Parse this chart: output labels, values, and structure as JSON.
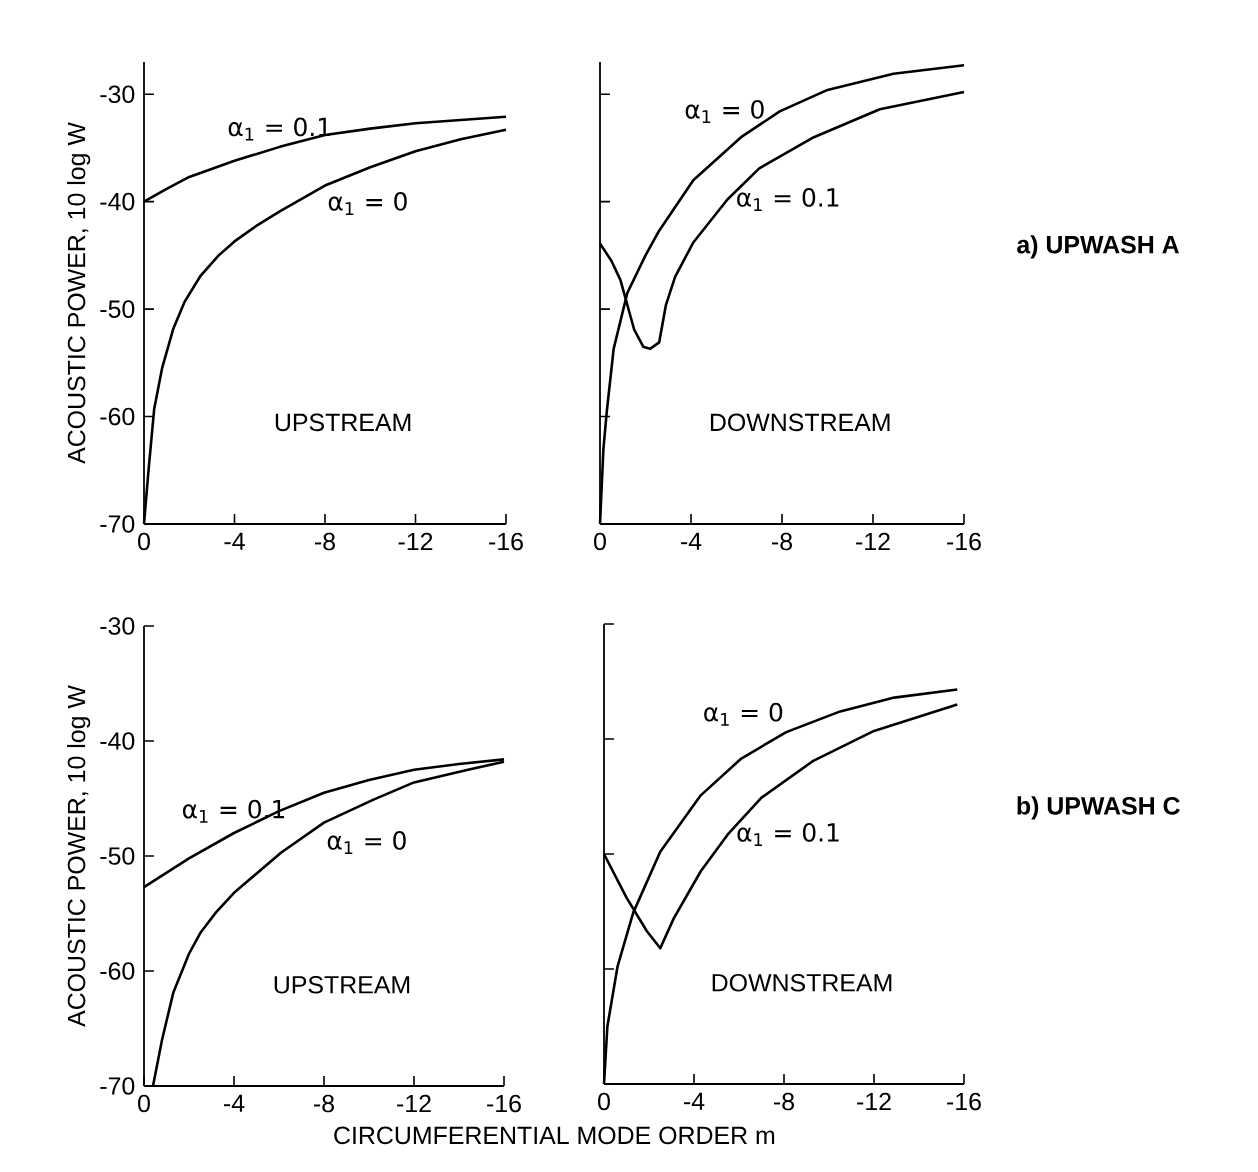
{
  "chart_data": [
    {
      "type": "line",
      "ylabel": "ACOUSTIC POWER, 10 log W",
      "xlim": [
        0,
        -16
      ],
      "ylim": [
        -70,
        -27
      ],
      "xticks": [
        0,
        -4,
        -8,
        -12,
        -16
      ],
      "yticks": [
        -70,
        -60,
        -50,
        -40,
        -30
      ],
      "annotations": [
        "UPSTREAM"
      ],
      "series": [
        {
          "name": "α$_{1}$ = 0.1",
          "color": "#000000",
          "x": [
            0,
            -1,
            -2,
            -4,
            -6,
            -8,
            -10,
            -12,
            -14,
            -16
          ],
          "values": [
            -40,
            -38.8,
            -37.7,
            -36.2,
            -34.9,
            -33.8,
            -33.2,
            -32.7,
            -32.4,
            -32.1
          ]
        },
        {
          "name": "α$_{1}$ = 0",
          "color": "#000000",
          "x": [
            0,
            -0.2,
            -0.45,
            -0.8,
            -1.3,
            -1.8,
            -2.5,
            -3.3,
            -4,
            -5,
            -6,
            -8,
            -10,
            -12,
            -14,
            -16
          ],
          "values": [
            -70,
            -65,
            -59.3,
            -55.5,
            -51.8,
            -49.3,
            -46.9,
            -45,
            -43.7,
            -42.2,
            -40.9,
            -38.5,
            -36.8,
            -35.3,
            -34.2,
            -33.3
          ]
        }
      ]
    },
    {
      "type": "line",
      "xlim": [
        0,
        -16
      ],
      "ylim": [
        -70,
        -27
      ],
      "xticks": [
        0,
        -4,
        -8,
        -12,
        -16
      ],
      "yticks": [
        -70,
        -60,
        -50,
        -40,
        -30
      ],
      "tick_labels": "x",
      "annotations": [
        "DOWNSTREAM",
        "a)  UPWASH A"
      ],
      "series": [
        {
          "name": "α$_{1}$ = 0",
          "color": "#000000",
          "x": [
            0,
            -0.15,
            -0.3,
            -0.6,
            -1.2,
            -2,
            -2.6,
            -4.1,
            -6.2,
            -7.9,
            -10,
            -12.9,
            -16
          ],
          "values": [
            -70,
            -63,
            -59.5,
            -53.7,
            -48.5,
            -45,
            -42.7,
            -38,
            -34,
            -31.6,
            -29.6,
            -28.1,
            -27.3
          ]
        },
        {
          "name": "α$_{1}$ = 0.1",
          "color": "#000000",
          "x": [
            0,
            -0.5,
            -0.9,
            -1.5,
            -1.9,
            -2.2,
            -2.6,
            -2.9,
            -3.3,
            -4.1,
            -5.6,
            -7,
            -9.4,
            -12.3,
            -16
          ],
          "values": [
            -43.9,
            -45.5,
            -47.3,
            -51.9,
            -53.5,
            -53.7,
            -53.1,
            -49.6,
            -47.0,
            -43.8,
            -39.8,
            -36.9,
            -34,
            -31.4,
            -29.8
          ]
        }
      ]
    },
    {
      "type": "line",
      "xlabel": "CIRCUMFERENTIAL MODE ORDER m",
      "ylabel": "ACOUSTIC POWER, 10 log W",
      "xlim": [
        0,
        -16
      ],
      "ylim": [
        -70,
        -30
      ],
      "xticks": [
        0,
        -4,
        -8,
        -12,
        -16
      ],
      "yticks": [
        -70,
        -60,
        -50,
        -40,
        -30
      ],
      "annotations": [
        "UPSTREAM"
      ],
      "series": [
        {
          "name": "α$_{1}$ = 0.1",
          "color": "#000000",
          "x": [
            0,
            -2,
            -4,
            -6,
            -8,
            -10,
            -12,
            -14,
            -16
          ],
          "values": [
            -52.7,
            -50.2,
            -48,
            -46.1,
            -44.5,
            -43.4,
            -42.5,
            -42,
            -41.6
          ]
        },
        {
          "name": "α$_{1}$ = 0",
          "color": "#000000",
          "x": [
            -0.4,
            -0.8,
            -1.3,
            -2,
            -2.5,
            -3.2,
            -4,
            -6.1,
            -8,
            -10.2,
            -12,
            -14.4,
            -16
          ],
          "values": [
            -70,
            -66,
            -61.9,
            -58.5,
            -56.7,
            -54.9,
            -53.2,
            -49.7,
            -47.1,
            -45.1,
            -43.6,
            -42.5,
            -41.8
          ]
        }
      ]
    },
    {
      "type": "line",
      "xlim": [
        0,
        -16
      ],
      "ylim": [
        -70,
        -30
      ],
      "xticks": [
        0,
        -4,
        -8,
        -12,
        -16
      ],
      "yticks": [
        -70,
        -60,
        -50,
        -40,
        -30
      ],
      "tick_labels": "x",
      "annotations": [
        "DOWNSTREAM",
        "b)  UPWASH C"
      ],
      "series": [
        {
          "name": "α$_{1}$ = 0",
          "color": "#000000",
          "x": [
            0,
            -0.15,
            -0.6,
            -1.3,
            -2.5,
            -4.3,
            -6.1,
            -8.1,
            -10.5,
            -12.9,
            -15.7
          ],
          "values": [
            -70,
            -65,
            -59.8,
            -55.1,
            -49.8,
            -44.9,
            -41.7,
            -39.4,
            -37.6,
            -36.4,
            -35.7
          ]
        },
        {
          "name": "α$_{1}$ = 0.1",
          "color": "#000000",
          "x": [
            0,
            -1,
            -1.9,
            -2.5,
            -3.1,
            -4.3,
            -5.5,
            -7,
            -9.3,
            -12,
            -15.7
          ],
          "values": [
            -50,
            -53.8,
            -56.7,
            -58.2,
            -55.6,
            -51.5,
            -48.3,
            -45.1,
            -41.9,
            -39.3,
            -37
          ]
        }
      ]
    }
  ]
}
